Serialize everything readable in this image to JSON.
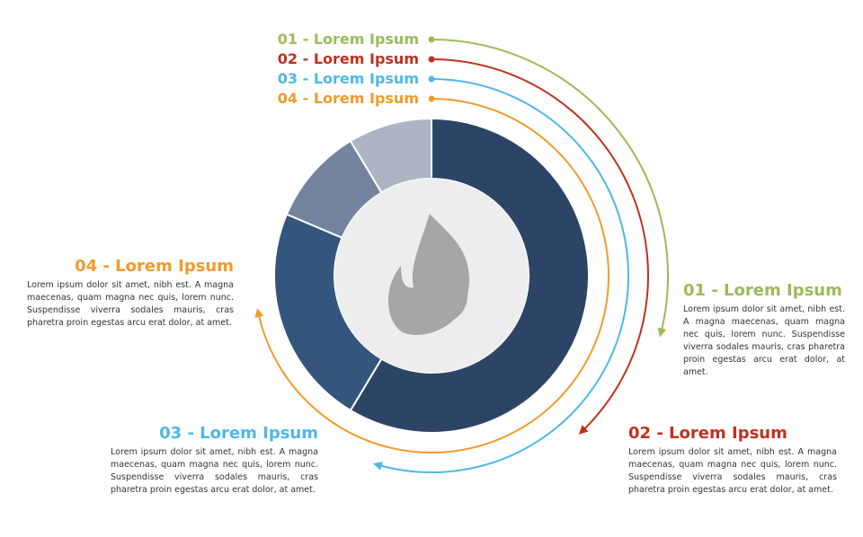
{
  "legend": [
    {
      "label": "01 - Lorem Ipsum"
    },
    {
      "label": "02 - Lorem Ipsum"
    },
    {
      "label": "03 - Lorem Ipsum"
    },
    {
      "label": "04 - Lorem Ipsum"
    }
  ],
  "sections": [
    {
      "title": "01 - Lorem Ipsum",
      "body": "Lorem ipsum dolor sit amet, nibh est. A magna maecenas, quam magna nec quis, lorem nunc. Suspendisse viverra sodales mauris, cras pharetra proin egestas arcu erat dolor, at amet."
    },
    {
      "title": "02 - Lorem Ipsum",
      "body": "Lorem ipsum dolor sit amet, nibh est. A magna maecenas, quam magna nec quis, lorem nunc. Suspendisse viverra sodales mauris, cras pharetra proin egestas arcu erat dolor, at amet."
    },
    {
      "title": "03 - Lorem Ipsum",
      "body": "Lorem ipsum dolor sit amet, nibh est. A magna maecenas, quam magna nec quis, lorem nunc. Suspendisse viverra sodales mauris, cras pharetra proin egestas arcu erat dolor, at amet."
    },
    {
      "title": "04 - Lorem Ipsum",
      "body": "Lorem ipsum dolor sit amet, nibh est. A magna maecenas, quam magna nec quis, lorem nunc. Suspendisse viverra sodales mauris, cras pharetra proin egestas arcu erat dolor, at amet."
    }
  ]
}
